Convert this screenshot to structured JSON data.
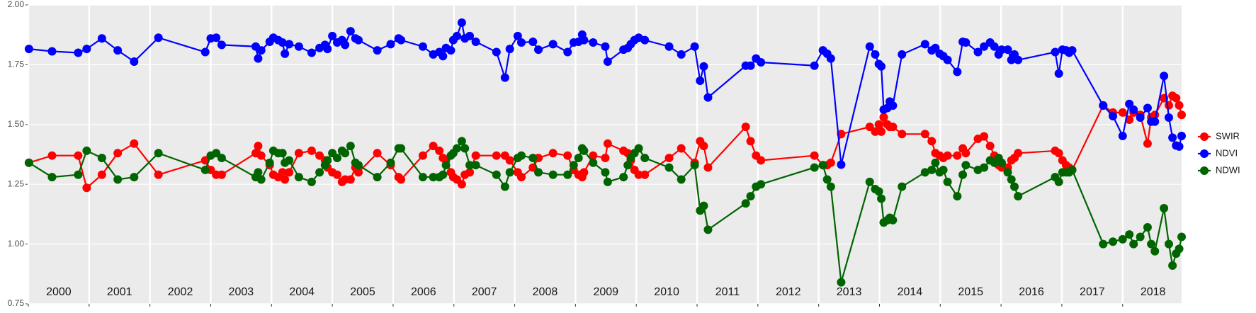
{
  "chart_data": {
    "type": "line",
    "x": [
      2000.01,
      2000.39,
      2000.82,
      2000.96,
      2001.21,
      2001.47,
      2001.74,
      2002.14,
      2002.91,
      2003.0,
      2003.09,
      2003.18,
      2003.74,
      2003.78,
      2003.83,
      2003.97,
      2004.03,
      2004.11,
      2004.18,
      2004.22,
      2004.29,
      2004.45,
      2004.66,
      2004.79,
      2004.88,
      2004.92,
      2005.0,
      2005.08,
      2005.16,
      2005.21,
      2005.3,
      2005.38,
      2005.43,
      2005.74,
      2005.96,
      2006.09,
      2006.13,
      2006.49,
      2006.66,
      2006.76,
      2006.82,
      2006.87,
      2006.95,
      2006.99,
      2007.05,
      2007.13,
      2007.18,
      2007.26,
      2007.36,
      2007.7,
      2007.84,
      2007.92,
      2008.05,
      2008.11,
      2008.3,
      2008.39,
      2008.63,
      2008.87,
      2008.97,
      2009.05,
      2009.11,
      2009.14,
      2009.29,
      2009.49,
      2009.53,
      2009.79,
      2009.86,
      2009.91,
      2009.97,
      2010.04,
      2010.14,
      2010.54,
      2010.74,
      2010.96,
      2011.05,
      2011.11,
      2011.18,
      2011.8,
      2011.88,
      2011.97,
      2012.05,
      2012.93,
      2013.07,
      2013.14,
      2013.2,
      2013.37,
      2013.84,
      2013.93,
      2013.99,
      2014.03,
      2014.07,
      2014.13,
      2014.17,
      2014.22,
      2014.37,
      2014.75,
      2014.86,
      2014.92,
      2014.99,
      2015.05,
      2015.12,
      2015.28,
      2015.37,
      2015.42,
      2015.62,
      2015.72,
      2015.82,
      2015.89,
      2015.96,
      2016.01,
      2016.11,
      2016.17,
      2016.22,
      2016.28,
      2016.89,
      2016.95,
      2017.01,
      2017.07,
      2017.12,
      2017.17,
      2017.68,
      2017.84,
      2018.0,
      2018.11,
      2018.18,
      2018.29,
      2018.41,
      2018.47,
      2018.53,
      2018.68,
      2018.76,
      2018.82,
      2018.88,
      2018.93,
      2018.97
    ],
    "series": [
      {
        "name": "SWIR",
        "color": "#ff0000",
        "values": [
          1.34,
          1.37,
          1.37,
          1.235,
          1.29,
          1.38,
          1.42,
          1.29,
          1.35,
          1.31,
          1.29,
          1.29,
          1.38,
          1.41,
          1.37,
          1.33,
          1.29,
          1.28,
          1.3,
          1.27,
          1.3,
          1.38,
          1.39,
          1.37,
          1.35,
          1.32,
          1.3,
          1.29,
          1.26,
          1.27,
          1.27,
          1.32,
          1.3,
          1.38,
          1.33,
          1.28,
          1.27,
          1.37,
          1.41,
          1.39,
          1.36,
          1.35,
          1.3,
          1.28,
          1.27,
          1.25,
          1.29,
          1.3,
          1.37,
          1.37,
          1.37,
          1.35,
          1.3,
          1.28,
          1.32,
          1.36,
          1.38,
          1.37,
          1.31,
          1.29,
          1.28,
          1.3,
          1.37,
          1.36,
          1.42,
          1.39,
          1.38,
          1.35,
          1.31,
          1.29,
          1.29,
          1.36,
          1.4,
          1.34,
          1.43,
          1.41,
          1.32,
          1.49,
          1.43,
          1.37,
          1.35,
          1.37,
          1.33,
          1.33,
          1.34,
          1.46,
          1.49,
          1.47,
          1.5,
          1.47,
          1.53,
          1.5,
          1.49,
          1.49,
          1.46,
          1.46,
          1.43,
          1.38,
          1.37,
          1.36,
          1.37,
          1.37,
          1.4,
          1.38,
          1.44,
          1.45,
          1.41,
          1.37,
          1.33,
          1.32,
          1.32,
          1.35,
          1.36,
          1.38,
          1.39,
          1.38,
          1.35,
          1.33,
          1.32,
          1.31,
          1.58,
          1.55,
          1.55,
          1.52,
          1.55,
          1.54,
          1.42,
          1.53,
          1.54,
          1.61,
          1.58,
          1.62,
          1.61,
          1.58,
          1.54
        ]
      },
      {
        "name": "NDVI",
        "color": "#0000ff",
        "values": [
          1.816,
          1.806,
          1.8,
          1.816,
          1.86,
          1.81,
          1.763,
          1.863,
          1.803,
          1.86,
          1.863,
          1.833,
          1.826,
          1.776,
          1.81,
          1.846,
          1.863,
          1.853,
          1.843,
          1.796,
          1.836,
          1.826,
          1.8,
          1.82,
          1.833,
          1.816,
          1.87,
          1.843,
          1.853,
          1.833,
          1.89,
          1.86,
          1.853,
          1.81,
          1.836,
          1.86,
          1.853,
          1.826,
          1.793,
          1.803,
          1.786,
          1.82,
          1.81,
          1.853,
          1.87,
          1.926,
          1.86,
          1.87,
          1.846,
          1.803,
          1.696,
          1.816,
          1.87,
          1.843,
          1.846,
          1.813,
          1.836,
          1.803,
          1.843,
          1.846,
          1.876,
          1.853,
          1.843,
          1.826,
          1.763,
          1.813,
          1.82,
          1.836,
          1.853,
          1.863,
          1.853,
          1.826,
          1.793,
          1.826,
          1.683,
          1.743,
          1.613,
          1.746,
          1.746,
          1.776,
          1.76,
          1.746,
          1.81,
          1.796,
          1.776,
          1.332,
          1.826,
          1.793,
          1.753,
          1.743,
          1.562,
          1.569,
          1.596,
          1.579,
          1.793,
          1.836,
          1.81,
          1.82,
          1.796,
          1.786,
          1.77,
          1.72,
          1.846,
          1.843,
          1.803,
          1.826,
          1.843,
          1.826,
          1.793,
          1.813,
          1.813,
          1.77,
          1.793,
          1.77,
          1.803,
          1.713,
          1.813,
          1.81,
          1.8,
          1.81,
          1.579,
          1.535,
          1.452,
          1.586,
          1.562,
          1.529,
          1.569,
          1.512,
          1.512,
          1.703,
          1.529,
          1.445,
          1.412,
          1.408,
          1.452
        ]
      },
      {
        "name": "NDWI",
        "color": "#006400",
        "values": [
          1.34,
          1.28,
          1.29,
          1.39,
          1.36,
          1.27,
          1.28,
          1.38,
          1.31,
          1.37,
          1.38,
          1.36,
          1.28,
          1.3,
          1.27,
          1.34,
          1.39,
          1.38,
          1.38,
          1.34,
          1.35,
          1.28,
          1.26,
          1.3,
          1.33,
          1.35,
          1.38,
          1.36,
          1.39,
          1.38,
          1.41,
          1.34,
          1.33,
          1.28,
          1.34,
          1.4,
          1.4,
          1.28,
          1.28,
          1.28,
          1.29,
          1.33,
          1.37,
          1.38,
          1.4,
          1.43,
          1.4,
          1.33,
          1.33,
          1.29,
          1.24,
          1.3,
          1.36,
          1.37,
          1.36,
          1.3,
          1.29,
          1.29,
          1.33,
          1.36,
          1.4,
          1.39,
          1.34,
          1.3,
          1.26,
          1.28,
          1.33,
          1.36,
          1.38,
          1.4,
          1.36,
          1.32,
          1.27,
          1.33,
          1.14,
          1.16,
          1.06,
          1.17,
          1.2,
          1.24,
          1.25,
          1.32,
          1.33,
          1.27,
          1.24,
          0.84,
          1.26,
          1.23,
          1.22,
          1.19,
          1.09,
          1.1,
          1.11,
          1.1,
          1.24,
          1.3,
          1.31,
          1.34,
          1.3,
          1.31,
          1.26,
          1.2,
          1.29,
          1.33,
          1.31,
          1.32,
          1.35,
          1.34,
          1.36,
          1.34,
          1.3,
          1.27,
          1.24,
          1.2,
          1.28,
          1.26,
          1.3,
          1.3,
          1.3,
          1.31,
          1.0,
          1.01,
          1.02,
          1.04,
          1.0,
          1.03,
          1.07,
          1.0,
          0.97,
          1.15,
          1.0,
          0.91,
          0.96,
          0.98,
          1.03
        ]
      }
    ],
    "xlim": [
      2000,
      2018.97
    ],
    "xticks": [
      2000,
      2001,
      2002,
      2003,
      2004,
      2005,
      2006,
      2007,
      2008,
      2009,
      2010,
      2011,
      2012,
      2013,
      2014,
      2015,
      2016,
      2017,
      2018
    ],
    "ylim": [
      0.75,
      2.0
    ],
    "yticks": [
      0.75,
      {
        "value": 1.0,
        "label": "1.00"
      },
      1.25,
      {
        "value": 1.5,
        "label": "1.50"
      },
      1.75,
      {
        "value": 2.0,
        "label": "2.00"
      }
    ],
    "grid": true,
    "legend": "right"
  }
}
